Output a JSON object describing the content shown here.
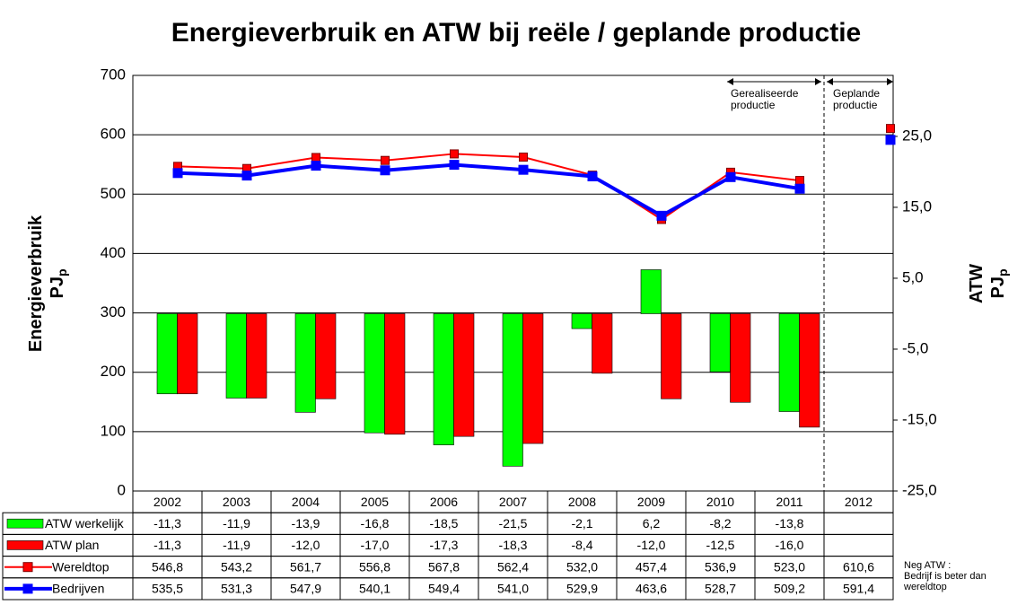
{
  "chart_data": {
    "type": "combo",
    "title": "Energieverbruik en ATW bij reële / geplande productie",
    "ylabel": [
      "Energieverbruik",
      {
        "base": "PJ",
        "sub": "p"
      }
    ],
    "y2label": [
      "ATW",
      {
        "base": "PJ",
        "sub": "p"
      }
    ],
    "categories": [
      "2002",
      "2003",
      "2004",
      "2005",
      "2006",
      "2007",
      "2008",
      "2009",
      "2010",
      "2011",
      "2012"
    ],
    "ylim": [
      0,
      700
    ],
    "yticks": [
      0,
      100,
      200,
      300,
      400,
      500,
      600,
      700
    ],
    "grid": true,
    "y2lim": [
      -25,
      33.6
    ],
    "y2ticks": [
      {
        "value": 25,
        "label": "25,0"
      },
      {
        "value": 15,
        "label": "15,0"
      },
      {
        "value": 5,
        "label": "5,0"
      },
      {
        "value": -5,
        "label": "-5,0"
      },
      {
        "value": -15,
        "label": "-15,0"
      },
      {
        "value": -25,
        "label": "-25,0"
      }
    ],
    "series": [
      {
        "name": "ATW werkelijk",
        "type": "bar",
        "axis": "y2",
        "color": "#00ff00",
        "values": [
          -11.3,
          -11.9,
          -13.9,
          -16.8,
          -18.5,
          -21.5,
          -2.1,
          6.2,
          -8.2,
          -13.8,
          null
        ],
        "value_labels": [
          "-11,3",
          "-11,9",
          "-13,9",
          "-16,8",
          "-18,5",
          "-21,5",
          "-2,1",
          "6,2",
          "-8,2",
          "-13,8",
          null
        ]
      },
      {
        "name": "ATW plan",
        "type": "bar",
        "axis": "y2",
        "color": "#ff0000",
        "values": [
          -11.3,
          -11.9,
          -12.0,
          -17.0,
          -17.3,
          -18.3,
          -8.4,
          -12.0,
          -12.5,
          -16.0,
          null
        ],
        "value_labels": [
          "-11,3",
          "-11,9",
          "-12,0",
          "-17,0",
          "-17,3",
          "-18,3",
          "-8,4",
          "-12,0",
          "-12,5",
          "-16,0",
          null
        ]
      },
      {
        "name": "Wereldtop",
        "type": "line",
        "color": "#ff0000",
        "values": [
          546.8,
          543.2,
          561.7,
          556.8,
          567.8,
          562.4,
          532.0,
          457.4,
          536.9,
          523.0,
          610.6
        ],
        "value_labels": [
          "546,8",
          "543,2",
          "561,7",
          "556,8",
          "567,8",
          "562,4",
          "532,0",
          "457,4",
          "536,9",
          "523,0",
          "610,6"
        ]
      },
      {
        "name": "Bedrijven",
        "type": "line",
        "color": "#0000ff",
        "values": [
          535.5,
          531.3,
          547.9,
          540.1,
          549.4,
          541.0,
          529.9,
          463.6,
          528.7,
          509.2,
          591.4
        ],
        "value_labels": [
          "535,5",
          "531,3",
          "547,9",
          "540,1",
          "549,4",
          "541,0",
          "529,9",
          "463,6",
          "528,7",
          "509,2",
          "591,4"
        ]
      }
    ],
    "annotations": [
      "Gerealiseerde productie",
      "Geplande productie"
    ],
    "note": [
      "Neg ATW :",
      "Bedrijf is beter dan",
      "wereldtop"
    ]
  }
}
